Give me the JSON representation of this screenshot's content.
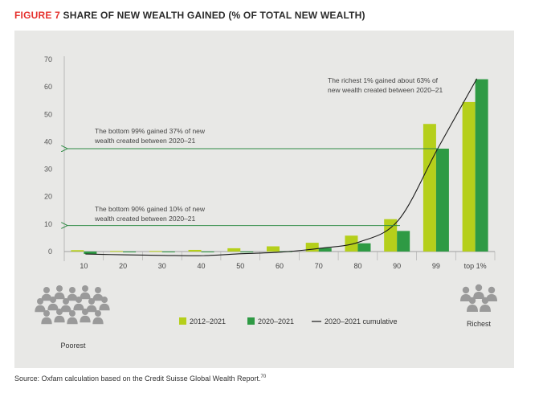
{
  "figure": {
    "number_label": "FIGURE 7",
    "title": "SHARE OF NEW WEALTH GAINED (% OF TOTAL NEW WEALTH)"
  },
  "source": {
    "text": "Source: Oxfam calculation based on the Credit Suisse Global Wealth Report.",
    "footnote": "70"
  },
  "colors": {
    "series_2012": "#b5cf1b",
    "series_2020": "#2e9a44",
    "cumulative": "#1a1a1a",
    "arrow": "#2e8a44",
    "panel": "#e8e8e6",
    "title_accent": "#e5312d",
    "icon": "#9a9a9a"
  },
  "people_labels": {
    "left": "Poorest",
    "right": "Richest"
  },
  "icons": {
    "left": "crowd-people-icon",
    "right": "small-group-people-icon"
  },
  "chart_data": {
    "type": "bar",
    "title": "SHARE OF NEW WEALTH GAINED (% OF TOTAL NEW WEALTH)",
    "categories": [
      "10",
      "20",
      "30",
      "40",
      "50",
      "60",
      "70",
      "80",
      "90",
      "99",
      "top 1%"
    ],
    "series": [
      {
        "name": "2012–2021",
        "values": [
          0.5,
          0.2,
          0.2,
          0.6,
          1.2,
          1.9,
          3.2,
          5.8,
          11.8,
          46.5,
          54.5
        ]
      },
      {
        "name": "2020–2021",
        "values": [
          -0.9,
          -0.3,
          -0.2,
          -0.2,
          -0.1,
          0.1,
          1.3,
          3.0,
          7.5,
          37.5,
          62.8
        ]
      }
    ],
    "cumulative": {
      "name": "2020–2021 cumulative",
      "values": [
        -0.9,
        -1.2,
        -1.4,
        -1.5,
        -0.8,
        -0.2,
        1.2,
        3.5,
        11.5,
        37.5,
        63.0
      ]
    },
    "yticks": [
      0,
      10,
      20,
      30,
      40,
      50,
      60,
      70
    ],
    "ylim": [
      -1,
      70
    ],
    "legend_position": "bottom",
    "annotations": [
      {
        "text": [
          "The richest 1% gained about 63% of",
          "new wealth created between 2020–21"
        ]
      },
      {
        "text": [
          "The bottom 99% gained 37% of new",
          "wealth created between 2020–21"
        ],
        "arrow_at_y": 37.5
      },
      {
        "text": [
          "The bottom 90% gained 10% of new",
          "wealth created between 2020–21"
        ],
        "arrow_at_y": 9.5
      }
    ]
  }
}
